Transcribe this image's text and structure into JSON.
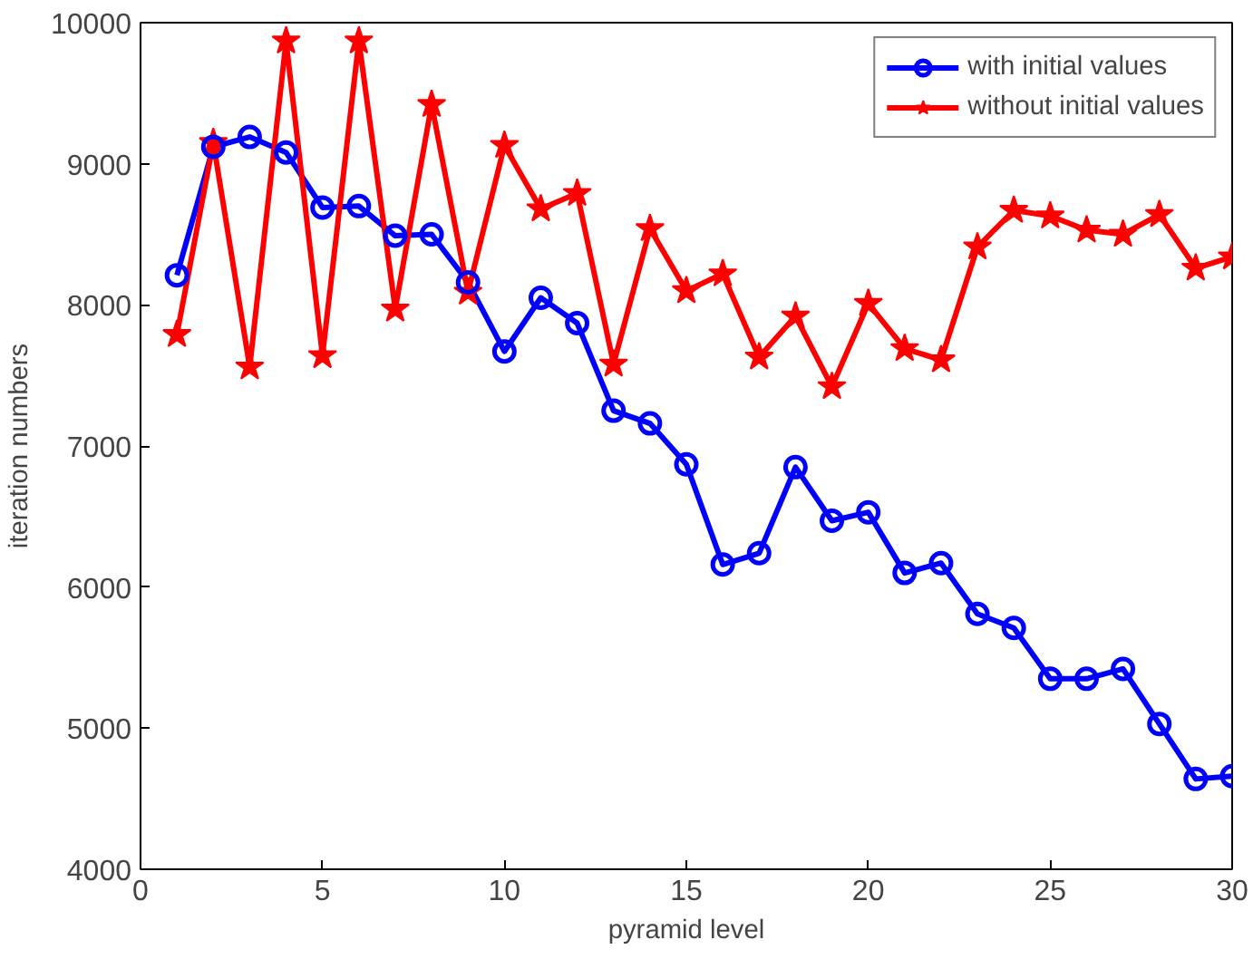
{
  "chart_data": {
    "type": "line",
    "xlabel": "pyramid level",
    "ylabel": "iteration numbers",
    "x": [
      1,
      2,
      3,
      4,
      5,
      6,
      7,
      8,
      9,
      10,
      11,
      12,
      13,
      14,
      15,
      16,
      17,
      18,
      19,
      20,
      21,
      22,
      23,
      24,
      25,
      26,
      27,
      28,
      29,
      30
    ],
    "series": [
      {
        "name": "with initial values",
        "color": "#0000ff",
        "marker": "circle",
        "values": [
          8210,
          9120,
          9190,
          9080,
          8690,
          8700,
          8490,
          8500,
          8160,
          7670,
          8050,
          7870,
          7250,
          7160,
          6870,
          6160,
          6240,
          6850,
          6470,
          6530,
          6100,
          6170,
          5810,
          5710,
          5350,
          5350,
          5420,
          5030,
          4640,
          4660
        ]
      },
      {
        "name": "without initial values",
        "color": "#ff0000",
        "marker": "star",
        "values": [
          7790,
          9150,
          7560,
          9870,
          7640,
          9870,
          7970,
          9420,
          8090,
          9130,
          8680,
          8790,
          7580,
          8540,
          8100,
          8220,
          7630,
          7920,
          7420,
          8010,
          7690,
          7610,
          8410,
          8670,
          8630,
          8530,
          8500,
          8640,
          8260,
          8340
        ]
      }
    ],
    "xlim": [
      0,
      30
    ],
    "xticks": [
      0,
      5,
      10,
      15,
      20,
      25,
      30
    ],
    "ylim": [
      4000,
      10000
    ],
    "yticks": [
      4000,
      5000,
      6000,
      7000,
      8000,
      9000,
      10000
    ],
    "grid": false,
    "legend": "top right",
    "line_style": "solid"
  }
}
